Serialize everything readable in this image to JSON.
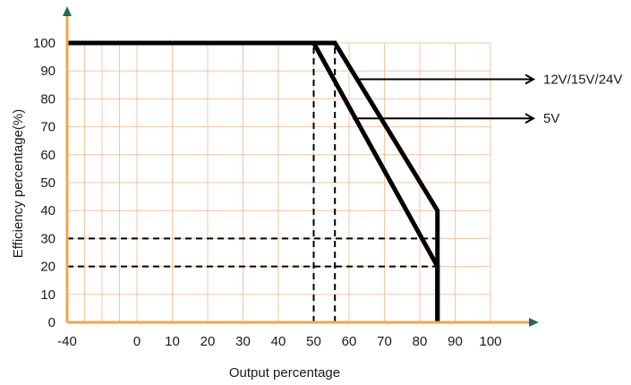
{
  "chart_data": {
    "type": "line",
    "xlabel": "Output percentage",
    "ylabel": "Efficiency percentage(%)",
    "x_ticks": [
      "-40",
      "0",
      "10",
      "20",
      "30",
      "40",
      "50",
      "60",
      "70",
      "80",
      "90",
      "100"
    ],
    "y_ticks": [
      "0",
      "10",
      "20",
      "30",
      "40",
      "50",
      "60",
      "70",
      "80",
      "90",
      "100"
    ],
    "x_tick_values": [
      -40,
      0,
      10,
      20,
      30,
      40,
      50,
      60,
      70,
      80,
      90,
      100
    ],
    "y_tick_values": [
      0,
      10,
      20,
      30,
      40,
      50,
      60,
      70,
      80,
      90,
      100
    ],
    "xlim": [
      -40,
      100
    ],
    "ylim": [
      0,
      100
    ],
    "grid": true,
    "series": [
      {
        "name": "12V/15V/24V",
        "x": [
          -40,
          56,
          85,
          85
        ],
        "y": [
          100,
          100,
          40,
          0
        ]
      },
      {
        "name": "5V",
        "x": [
          -40,
          50,
          85,
          85
        ],
        "y": [
          100,
          100,
          20,
          0
        ]
      }
    ],
    "reference_lines": [
      {
        "orientation": "horizontal",
        "y": 30,
        "x_from": -40,
        "x_to": 85
      },
      {
        "orientation": "horizontal",
        "y": 20,
        "x_from": -40,
        "x_to": 85
      },
      {
        "orientation": "vertical",
        "x": 50,
        "y_from": 0,
        "y_to": 100
      },
      {
        "orientation": "vertical",
        "x": 56,
        "y_from": 0,
        "y_to": 100
      }
    ],
    "annotations": [
      {
        "text": "12V/15V/24V",
        "anchor_x": 62,
        "anchor_y": 87
      },
      {
        "text": "5V",
        "anchor_x": 61,
        "anchor_y": 73
      }
    ],
    "colors": {
      "grid": "#f6c4a0",
      "axis": "#f2a64a",
      "arrow_head": "#1e6b58",
      "line": "#000000"
    }
  }
}
